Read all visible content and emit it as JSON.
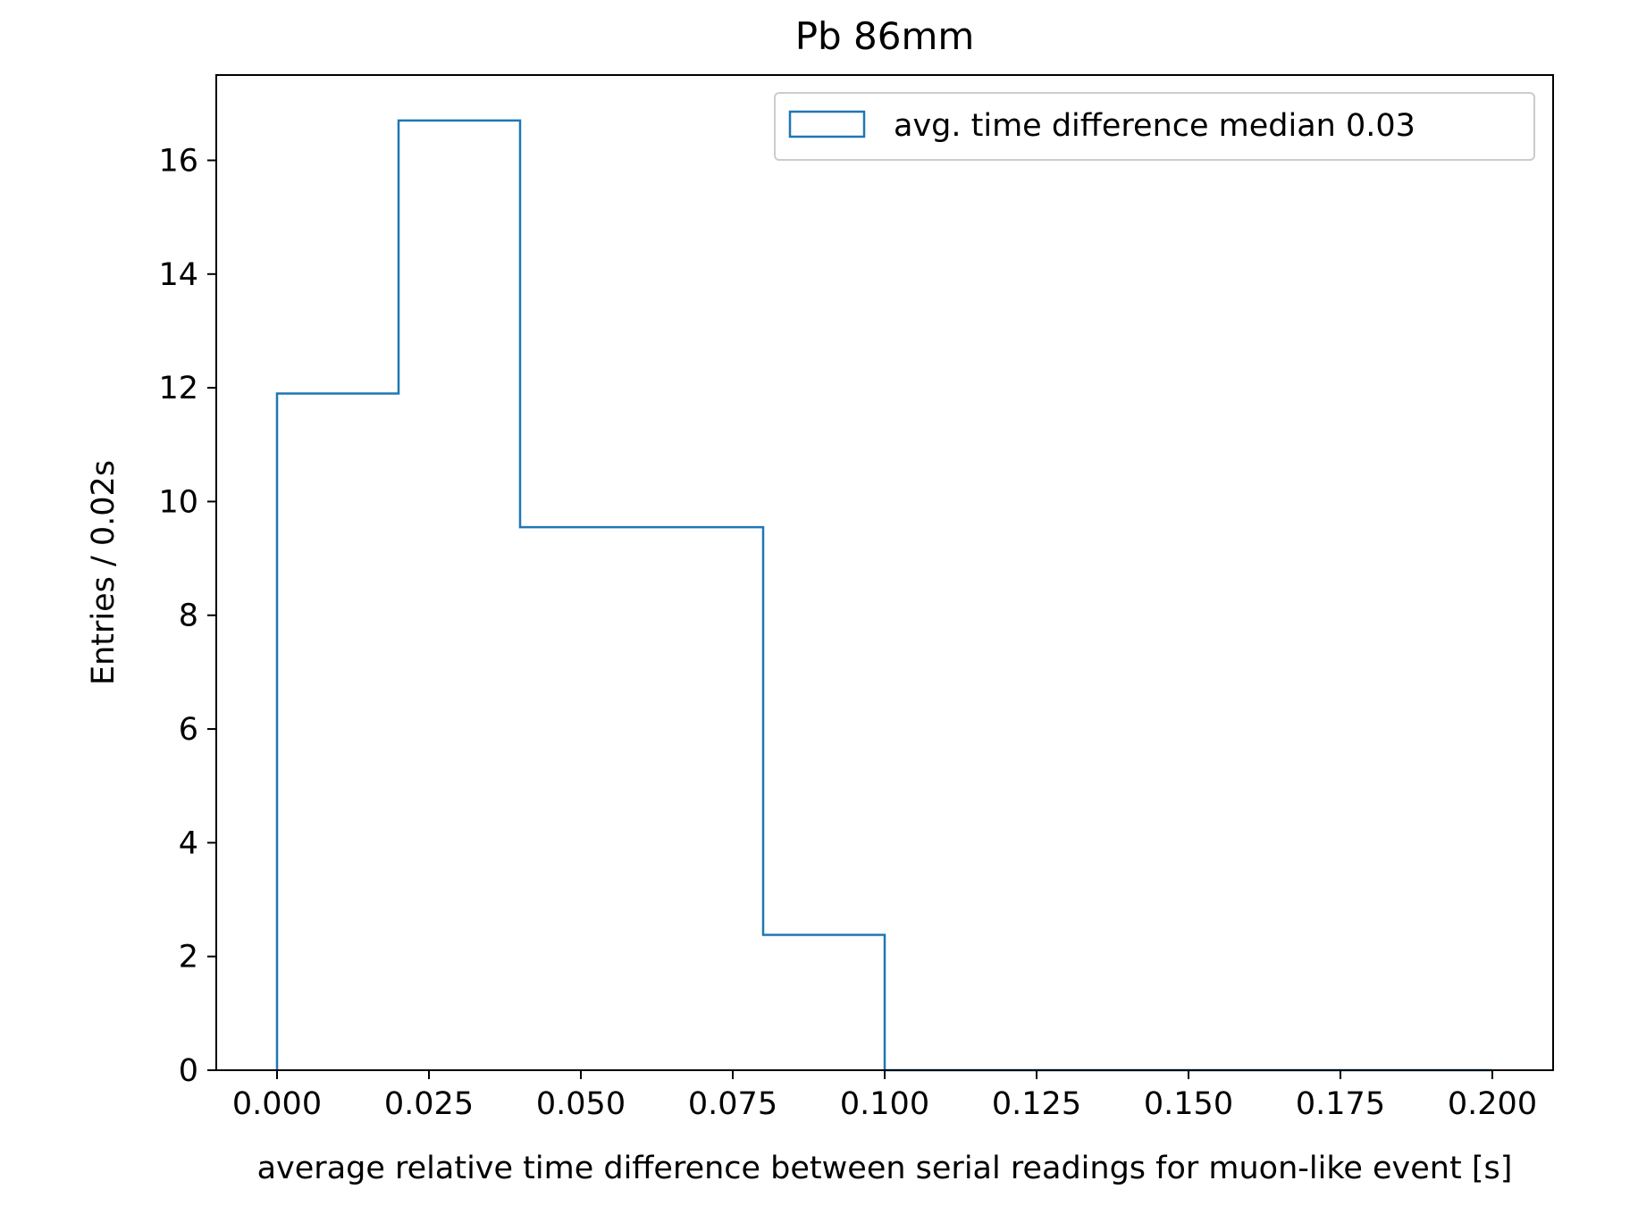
{
  "chart_data": {
    "type": "histogram",
    "title": "Pb 86mm",
    "xlabel": "average relative time difference between serial readings for muon-like event [s]",
    "ylabel": "Entries / 0.02s",
    "xlim": [
      -0.01,
      0.21
    ],
    "ylim": [
      0,
      17.5
    ],
    "x_ticks": [
      0.0,
      0.025,
      0.05,
      0.075,
      0.1,
      0.125,
      0.15,
      0.175,
      0.2
    ],
    "x_tick_labels": [
      "0.000",
      "0.025",
      "0.050",
      "0.075",
      "0.100",
      "0.125",
      "0.150",
      "0.175",
      "0.200"
    ],
    "y_ticks": [
      0,
      2,
      4,
      6,
      8,
      10,
      12,
      14,
      16
    ],
    "y_tick_labels": [
      "0",
      "2",
      "4",
      "6",
      "8",
      "10",
      "12",
      "14",
      "16"
    ],
    "bin_edges": [
      0.0,
      0.02,
      0.04,
      0.06,
      0.08,
      0.1,
      0.12,
      0.14,
      0.16,
      0.18,
      0.2
    ],
    "series": [
      {
        "name": "avg. time difference median 0.03",
        "values": [
          11.9,
          16.7,
          9.55,
          9.55,
          2.38,
          0,
          0,
          0,
          0,
          0
        ],
        "color": "#1f77b4",
        "style": "step"
      }
    ],
    "legend_position": "top-right",
    "grid": false
  }
}
